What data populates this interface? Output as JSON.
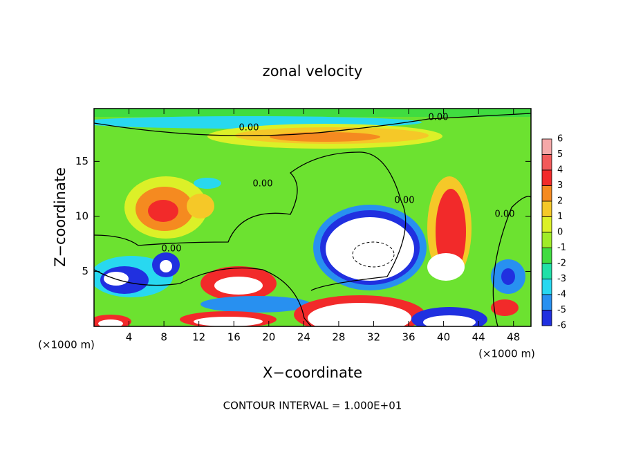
{
  "chart_data": {
    "type": "contour",
    "title": "zonal velocity",
    "xlabel": "X−coordinate",
    "ylabel": "Z−coordinate",
    "x_unit": "(×1000 m)",
    "note": "CONTOUR INTERVAL = 1.000E+01",
    "contour_labels": [
      "0.00",
      "0.00",
      "0.00",
      "0.00",
      "0.00",
      "0.00"
    ],
    "xlim": [
      0,
      50
    ],
    "ylim": [
      0,
      19.8
    ],
    "xticks": [
      4,
      8,
      12,
      16,
      20,
      24,
      28,
      32,
      36,
      40,
      44,
      48
    ],
    "yticks": [
      5,
      10,
      15
    ],
    "levels": [
      6,
      5,
      4,
      3,
      2,
      1,
      0,
      -1,
      -2,
      -3,
      -4,
      -5,
      -6
    ],
    "colors": [
      "#f5a8a8",
      "#f25a5a",
      "#f22a2a",
      "#f58a20",
      "#f5c828",
      "#dcf028",
      "#a0ec28",
      "#40dc40",
      "#20e0a8",
      "#28d8f0",
      "#2890f0",
      "#2030e0",
      "#6818a8"
    ]
  }
}
